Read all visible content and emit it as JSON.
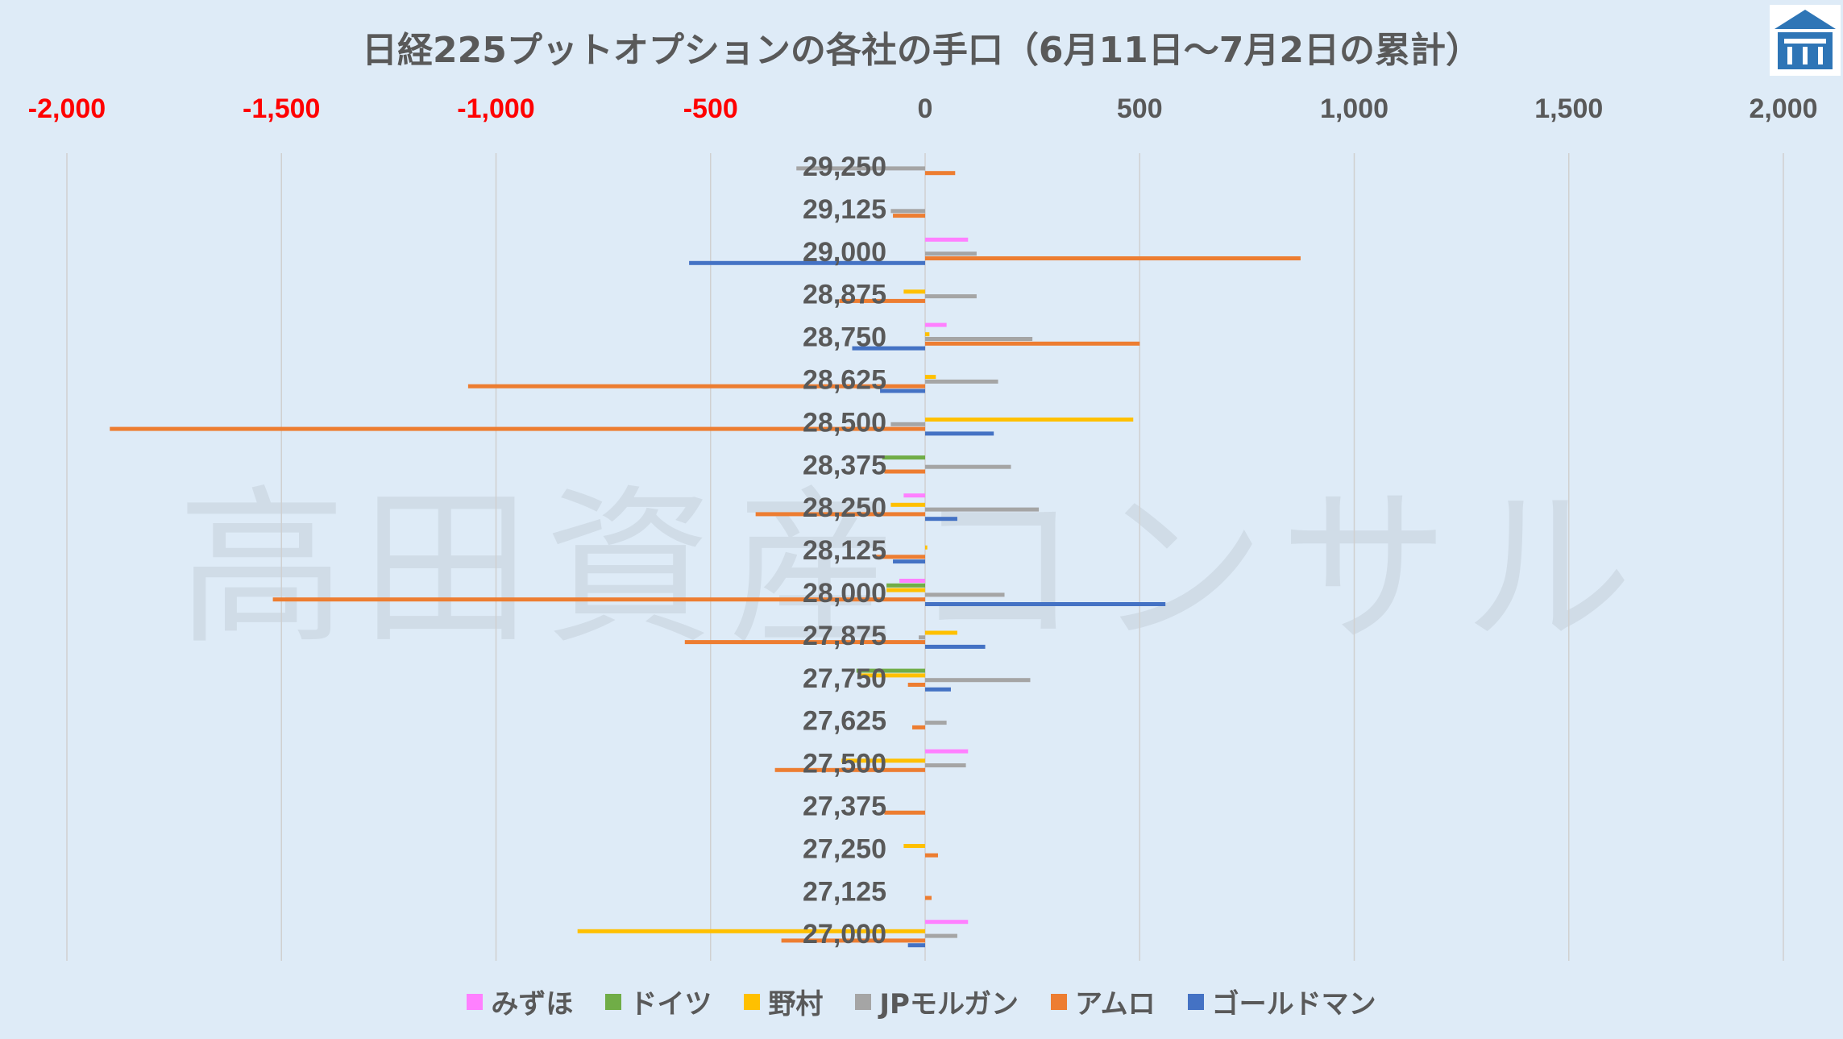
{
  "title": "日経225プットオプションの各社の手口（6月11日～7月2日の累計）",
  "watermark": "高田資産コンサル",
  "chart_data": {
    "type": "bar",
    "orientation": "horizontal",
    "xlim": [
      -2000,
      2000
    ],
    "x_ticks": [
      "-2,000",
      "-1,500",
      "-1,000",
      "-500",
      "0",
      "500",
      "1,000",
      "1,500",
      "2,000"
    ],
    "x_tick_values": [
      -2000,
      -1500,
      -1000,
      -500,
      0,
      500,
      1000,
      1500,
      2000
    ],
    "negative_tick_color": "#ff0000",
    "grid": true,
    "legend_position": "bottom",
    "categories": [
      "29,250",
      "29,125",
      "29,000",
      "28,875",
      "28,750",
      "28,625",
      "28,500",
      "28,375",
      "28,250",
      "28,125",
      "28,000",
      "27,875",
      "27,750",
      "27,625",
      "27,500",
      "27,375",
      "27,250",
      "27,125",
      "27,000"
    ],
    "series": [
      {
        "name": "みずほ",
        "color": "#ff80ff",
        "values": [
          0,
          0,
          100,
          0,
          50,
          0,
          0,
          0,
          -50,
          0,
          -60,
          0,
          0,
          0,
          100,
          0,
          0,
          0,
          100
        ]
      },
      {
        "name": "ドイツ",
        "color": "#70ad47",
        "values": [
          0,
          0,
          0,
          0,
          0,
          0,
          0,
          -100,
          0,
          0,
          -90,
          0,
          -160,
          0,
          0,
          0,
          0,
          0,
          0
        ]
      },
      {
        "name": "野村",
        "color": "#ffc000",
        "values": [
          0,
          0,
          0,
          -50,
          10,
          25,
          485,
          0,
          -80,
          5,
          -90,
          75,
          -150,
          0,
          -195,
          0,
          -50,
          0,
          -810
        ]
      },
      {
        "name": "JPモルガン",
        "color": "#a5a5a5",
        "values": [
          -300,
          -80,
          120,
          120,
          250,
          170,
          -80,
          200,
          265,
          0,
          185,
          -15,
          245,
          50,
          95,
          0,
          0,
          0,
          75
        ]
      },
      {
        "name": "アムロ",
        "color": "#ed7d31",
        "values": [
          70,
          -75,
          875,
          -200,
          500,
          -1065,
          -1900,
          -95,
          -395,
          -115,
          -1520,
          -560,
          -40,
          -30,
          -350,
          -95,
          30,
          15,
          -335
        ]
      },
      {
        "name": "ゴールドマン",
        "color": "#4472c4",
        "values": [
          0,
          0,
          -550,
          0,
          -170,
          -105,
          160,
          0,
          75,
          -75,
          560,
          140,
          60,
          0,
          0,
          0,
          0,
          0,
          -40
        ]
      }
    ]
  }
}
